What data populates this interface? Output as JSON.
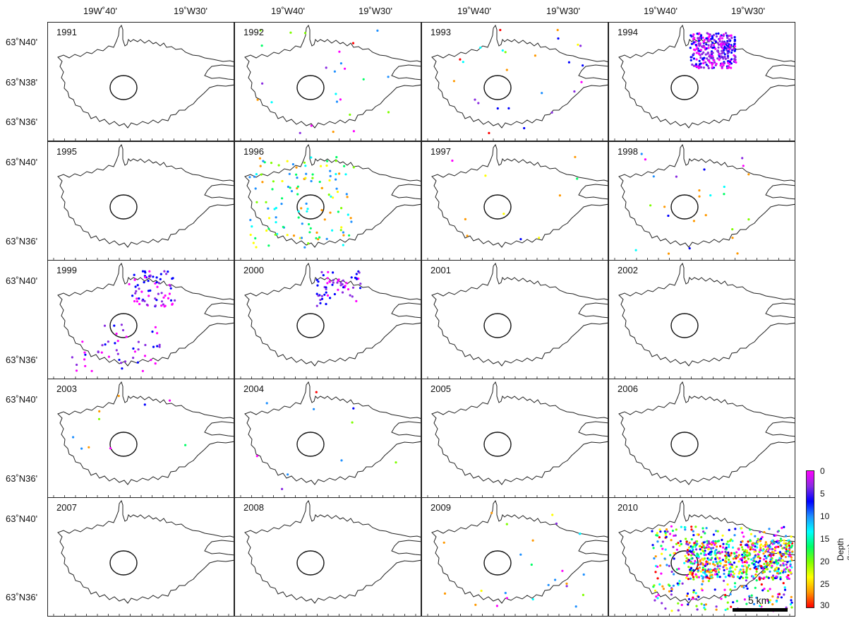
{
  "figure": {
    "top_axis_labels": [
      "19W˚40'",
      "19˚W30'",
      "19˚W40'",
      "19˚W30'",
      "19˚W40'",
      "19˚W30'",
      "19˚W40'",
      "19˚W30'"
    ],
    "left_axis_labels": {
      "north_40": "63˚N40'",
      "north_38": "63˚N38'",
      "north_36": "63˚N36'"
    },
    "panels": [
      {
        "year": "1991",
        "activity": 0
      },
      {
        "year": "1992",
        "activity": 2
      },
      {
        "year": "1993",
        "activity": 2
      },
      {
        "year": "1994",
        "activity": 5
      },
      {
        "year": "1995",
        "activity": 0
      },
      {
        "year": "1996",
        "activity": 4
      },
      {
        "year": "1997",
        "activity": 1
      },
      {
        "year": "1998",
        "activity": 2
      },
      {
        "year": "1999",
        "activity": 4
      },
      {
        "year": "2000",
        "activity": 3
      },
      {
        "year": "2001",
        "activity": 0
      },
      {
        "year": "2002",
        "activity": 0
      },
      {
        "year": "2003",
        "activity": 1
      },
      {
        "year": "2004",
        "activity": 1
      },
      {
        "year": "2005",
        "activity": 0
      },
      {
        "year": "2006",
        "activity": 0
      },
      {
        "year": "2007",
        "activity": 0
      },
      {
        "year": "2008",
        "activity": 0
      },
      {
        "year": "2009",
        "activity": 2
      },
      {
        "year": "2010",
        "activity": 6
      }
    ],
    "colorbar": {
      "ticks": [
        "0",
        "5",
        "10",
        "15",
        "20",
        "25",
        "30"
      ],
      "label": "Depth (km)",
      "colors": [
        "#ff00ff",
        "#8a2be2",
        "#0000ff",
        "#1e90ff",
        "#00ffff",
        "#00ff66",
        "#7fff00",
        "#ffff00",
        "#ff9900",
        "#ff0000"
      ]
    },
    "scalebar": {
      "label": "5 km"
    }
  }
}
